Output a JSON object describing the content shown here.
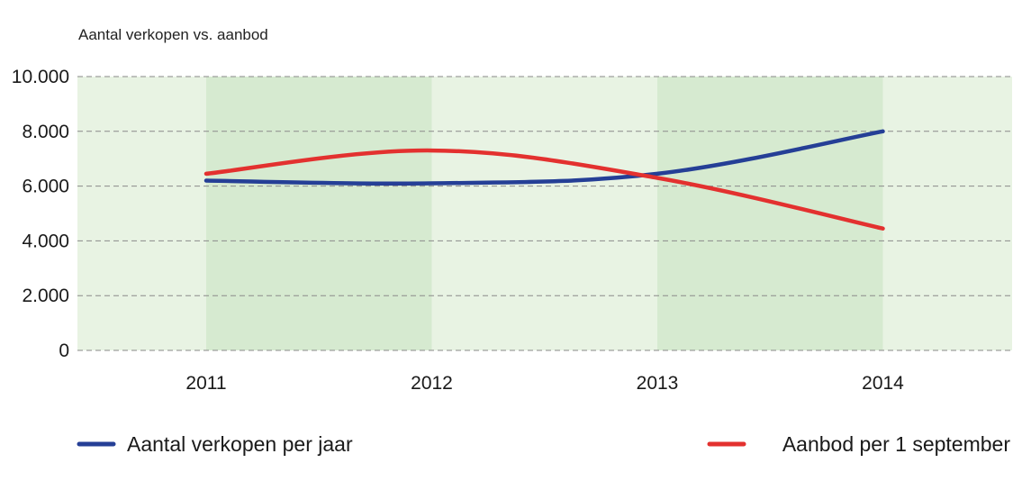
{
  "chart_data": {
    "type": "line",
    "title": "Aantal verkopen vs. aanbod",
    "xlabel": "",
    "ylabel": "",
    "categories": [
      "2011",
      "2012",
      "2013",
      "2014"
    ],
    "ylim": [
      0,
      10000
    ],
    "yticks": [
      0,
      2000,
      4000,
      6000,
      8000,
      10000
    ],
    "ytick_labels": [
      "0",
      "2.000",
      "4.000",
      "6.000",
      "8.000",
      "10.000"
    ],
    "grid": "horizontal-dashed",
    "legend_position": "bottom",
    "series": [
      {
        "name": "Aantal verkopen per jaar",
        "values": [
          6200,
          6100,
          6450,
          8000
        ],
        "color": "#253f96"
      },
      {
        "name": "Aanbod per 1 september",
        "values": [
          6450,
          7300,
          6300,
          4450
        ],
        "color": "#e3312f"
      }
    ],
    "colors": {
      "band_light": "#e8f3e3",
      "band_dark": "#d6ead0",
      "grid": "#8a8a8a"
    }
  }
}
